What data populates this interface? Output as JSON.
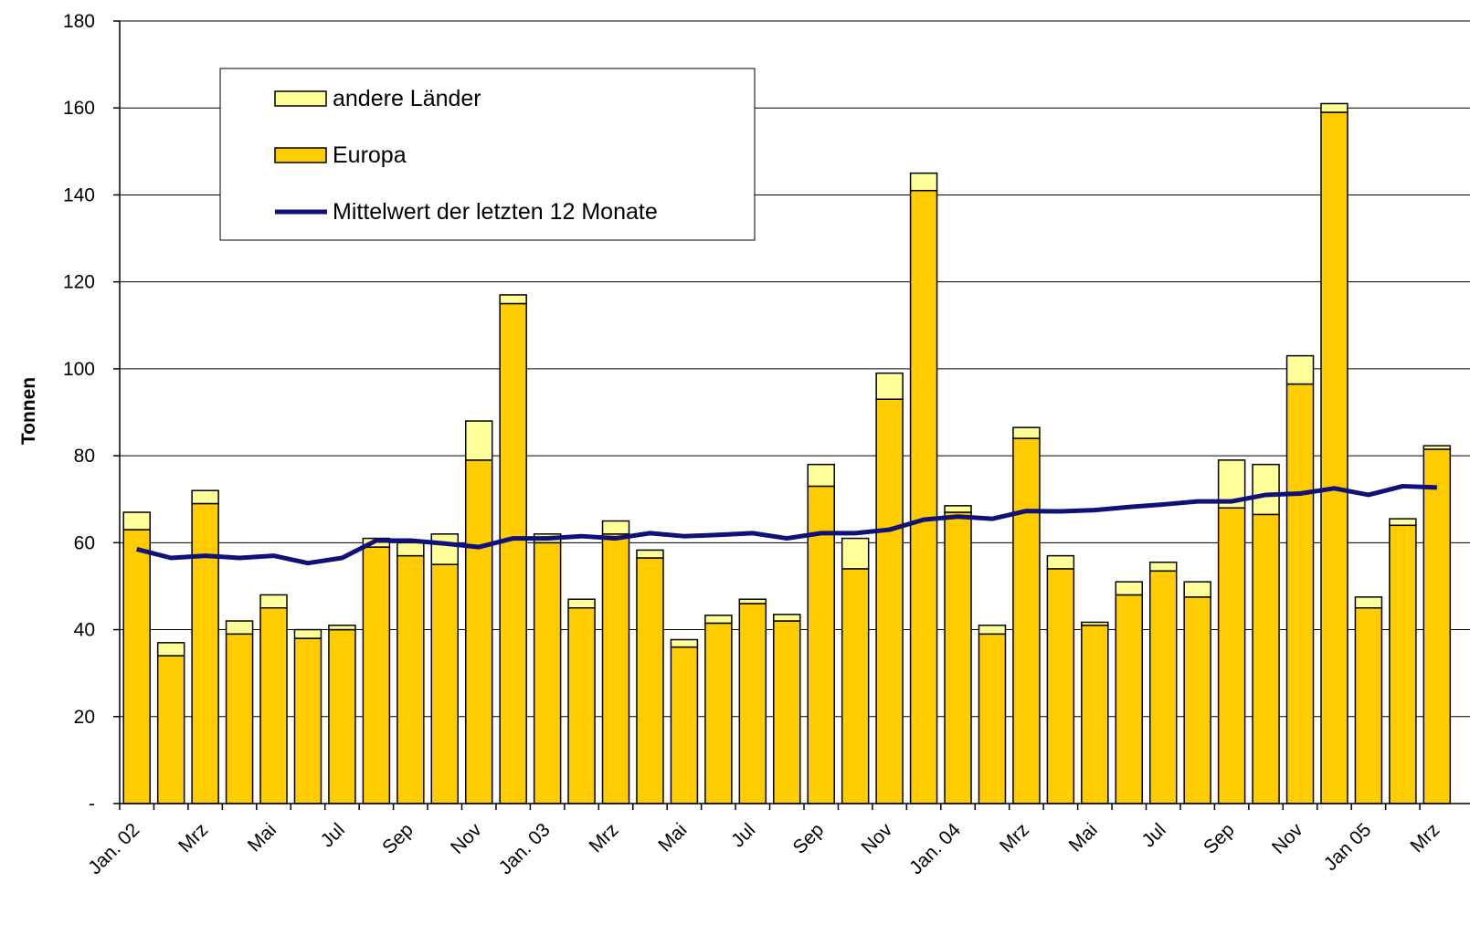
{
  "chart_data": {
    "type": "bar",
    "y_label": "Tonnen",
    "categories": [
      "Jan. 02",
      null,
      "Mrz",
      null,
      "Mai",
      null,
      "Jul",
      null,
      "Sep",
      null,
      "Nov",
      null,
      "Jan. 03",
      null,
      "Mrz",
      null,
      "Mai",
      null,
      "Jul",
      null,
      "Sep",
      null,
      "Nov",
      null,
      "Jan. 04",
      null,
      "Mrz",
      null,
      "Mai",
      null,
      "Jul",
      null,
      "Sep",
      null,
      "Nov",
      null,
      "Jan 05",
      null,
      "Mrz"
    ],
    "series": [
      {
        "name": "andere Länder",
        "type": "bar",
        "color": "#ffff99",
        "values": [
          4,
          3,
          3,
          3,
          3,
          2,
          1,
          2,
          3,
          7,
          9,
          2,
          2,
          2,
          3,
          1.8,
          1.7,
          1.8,
          1,
          1.5,
          5,
          7,
          6,
          4,
          1.5,
          2,
          2.5,
          3,
          0.7,
          3,
          2,
          3.5,
          11,
          11.5,
          6.5,
          2,
          2.5,
          1.5,
          0.8
        ]
      },
      {
        "name": "Europa",
        "type": "bar",
        "color": "#ffcc00",
        "values": [
          63,
          34,
          69,
          39,
          45,
          38,
          40,
          59,
          57,
          55,
          79,
          115,
          60,
          45,
          62,
          56.5,
          36,
          41.5,
          46,
          42,
          73,
          54,
          93,
          141,
          67,
          39,
          84,
          54,
          41,
          48,
          53.5,
          47.5,
          68,
          66.5,
          96.5,
          159,
          45,
          64,
          81.5
        ]
      },
      {
        "name": "Mittelwert der letzten 12 Monate",
        "type": "line",
        "color": "#10107a",
        "values": [
          58.5,
          56.5,
          57,
          56.5,
          57,
          55.3,
          56.5,
          60.5,
          60.5,
          59.8,
          59,
          61,
          61,
          61.5,
          61,
          62.2,
          61.5,
          61.8,
          62.2,
          61,
          62.2,
          62.2,
          63,
          65.3,
          66,
          65.5,
          67.3,
          67.2,
          67.5,
          68.2,
          68.8,
          69.5,
          69.5,
          71,
          71.3,
          72.5,
          71,
          73,
          72.7
        ]
      }
    ],
    "ylim": [
      0,
      180
    ],
    "yticks": [
      {
        "value": 0,
        "label": "-"
      },
      20,
      40,
      60,
      80,
      100,
      120,
      140,
      160,
      180
    ],
    "grid": true
  }
}
